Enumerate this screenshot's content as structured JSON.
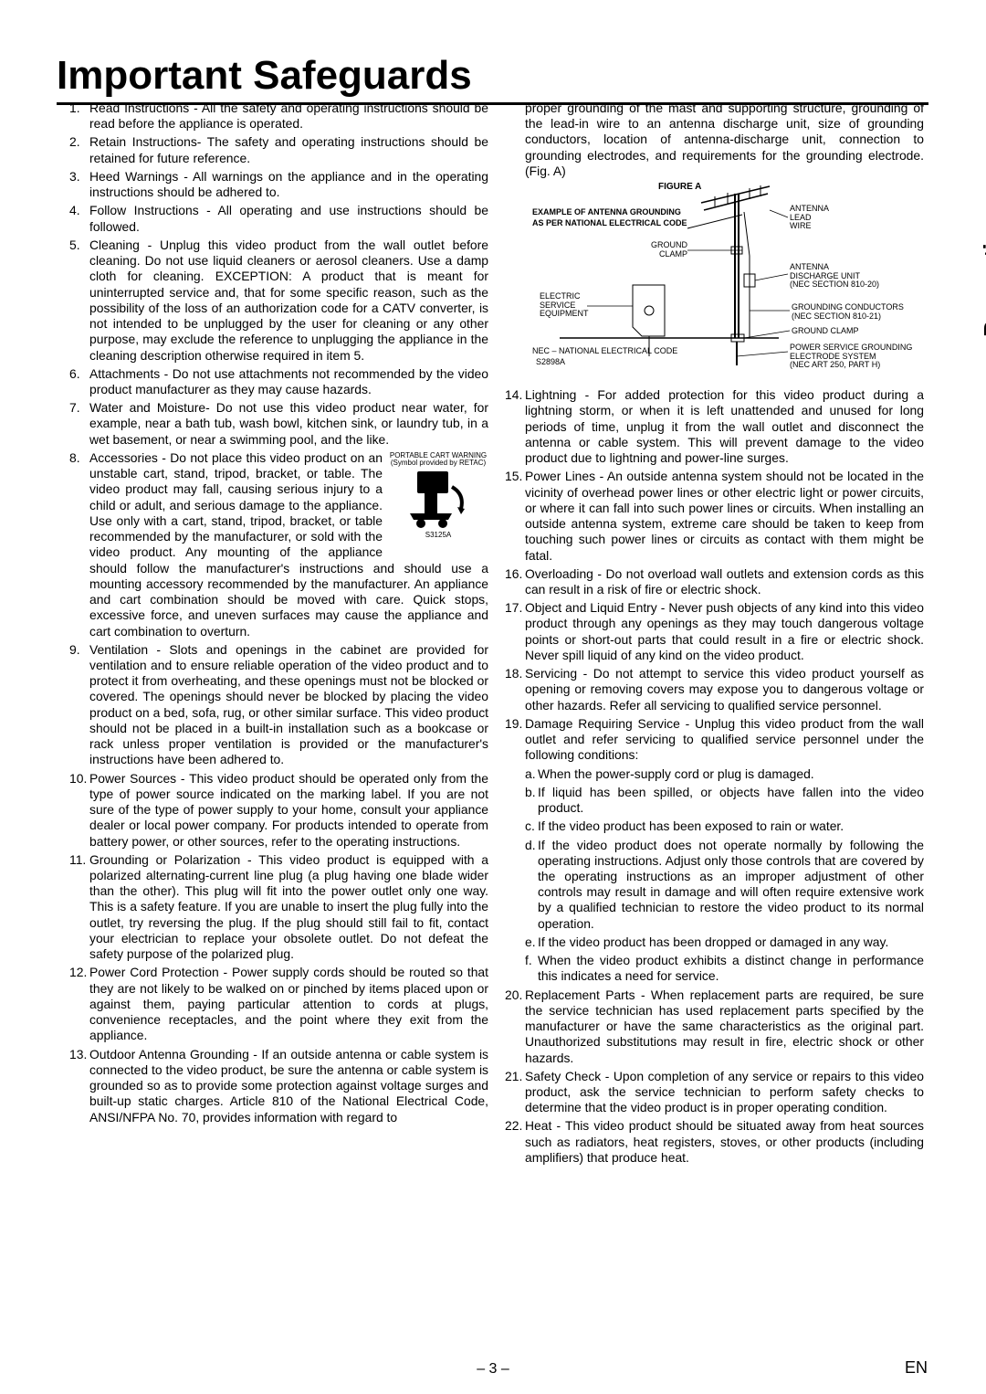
{
  "page_title": "Important Safeguards",
  "side_tab": "Precautions",
  "footer_page": "– 3 –",
  "footer_en": "EN",
  "cart_warning_line1": "PORTABLE CART WARNING",
  "cart_warning_line2": "(Symbol provided by RETAC)",
  "cart_code": "S3125A",
  "figureA": {
    "title": "FIGURE A",
    "subtitle1": "EXAMPLE OF ANTENNA GROUNDING",
    "subtitle2": "AS PER NATIONAL ELECTRICAL CODE",
    "antenna_lead": "ANTENNA\nLEAD\nWIRE",
    "ground_clamp": "GROUND\nCLAMP",
    "discharge": "ANTENNA\nDISCHARGE UNIT\n(NEC SECTION 810-20)",
    "electric_service": "ELECTRIC\nSERVICE\nEQUIPMENT",
    "grounding_conductors": "GROUNDING CONDUCTORS\n(NEC SECTION 810-21)",
    "ground_clamp2": "GROUND CLAMP",
    "power_service": "POWER SERVICE GROUNDING\nELECTRODE SYSTEM\n(NEC ART 250, PART H)",
    "nec_note": "NEC – NATIONAL ELECTRICAL CODE",
    "code": "S2898A"
  },
  "left": [
    {
      "n": "1.",
      "t": "Read Instructions - All the safety and operating instructions should be read before the appliance is operated."
    },
    {
      "n": "2.",
      "t": "Retain Instructions- The safety and operating instructions should be retained for future reference."
    },
    {
      "n": "3.",
      "t": "Heed Warnings - All warnings on the appliance and in the operating instructions should be adhered to."
    },
    {
      "n": "4.",
      "t": "Follow Instructions - All operating and use instructions should be followed."
    },
    {
      "n": "5.",
      "t": "Cleaning - Unplug this video product from the wall outlet before cleaning. Do not use liquid cleaners or aerosol cleaners. Use a damp cloth for cleaning. EXCEPTION: A product that is meant for uninterrupted service and, that for some specific reason, such as the possibility of the loss of an authorization code for a CATV converter, is not intended to be unplugged by the user for cleaning or any other purpose, may exclude the reference to unplugging the appliance in the cleaning description otherwise required in item 5."
    },
    {
      "n": "6.",
      "t": "Attachments - Do not use attachments not recommended by the video product manufacturer as they may cause hazards."
    },
    {
      "n": "7.",
      "t": "Water and Moisture- Do not use this video product near water, for example, near a bath tub, wash bowl, kitchen sink, or laundry tub, in a wet basement, or near a swimming pool, and the like."
    },
    {
      "n": "8.",
      "t": "Accessories - Do not place this video product on an unstable cart, stand, tripod, bracket, or table. The video product may fall, causing serious injury to a child or adult, and serious damage to the appliance. Use only with a cart, stand, tripod, bracket, or table recommended by the manufacturer, or sold with the video product. Any mounting of the appliance should follow the manufacturer's instructions and should use a mounting accessory recommended by the manufacturer. An appliance and cart combination should be moved with care. Quick stops, excessive force, and uneven surfaces may cause the appliance and cart combination to overturn.",
      "cart": true
    },
    {
      "n": "9.",
      "t": "Ventilation - Slots and openings in the cabinet are provided for ventilation and to ensure reliable operation of the video product and to protect it from overheating, and these openings must not be blocked or covered. The openings should never be blocked by placing the video product on a bed, sofa, rug, or other similar surface. This video product should not be placed in a built-in installation such as a bookcase or rack unless proper ventilation is provided or the manufacturer's instructions have been adhered to."
    },
    {
      "n": "10.",
      "t": "Power Sources - This video product should be operated only from the type of power source indicated on the marking label. If you are not sure of the type of power supply to your home, consult your appliance dealer or local power company. For products intended to operate from battery power, or other sources, refer to the operating instructions."
    },
    {
      "n": "11.",
      "t": "Grounding or Polarization - This video product is equipped with a polarized alternating-current line plug (a plug having one blade wider than the other). This plug will fit into the power outlet only one way. This is a safety feature. If you are unable to insert the plug fully into the outlet, try reversing the plug. If the plug should still fail to fit, contact your electrician to replace your obsolete outlet. Do not defeat the safety purpose of the polarized plug."
    },
    {
      "n": "12.",
      "t": "Power Cord Protection - Power supply cords should be routed so that they are not likely to be walked on or pinched by items placed upon or against them, paying particular attention to cords at plugs, convenience receptacles, and the point where they exit from the appliance."
    },
    {
      "n": "13.",
      "t": "Outdoor Antenna Grounding - If an outside antenna or cable system is connected to the video product, be sure the antenna or cable system is grounded so as to provide some protection against voltage surges and built-up static charges. Article 810 of the National Electrical Code, ANSI/NFPA No. 70, provides information with regard to"
    }
  ],
  "right_intro": "proper grounding of the mast and supporting structure, grounding of the lead-in wire to an antenna discharge unit, size of grounding conductors, location of antenna-discharge unit, connection to grounding electrodes, and requirements for the grounding electrode. (Fig. A)",
  "right": [
    {
      "n": "14.",
      "t": "Lightning - For added protection for this video product during a lightning storm, or when it is left unattended and unused for long periods of time, unplug it from the wall outlet and disconnect the antenna or cable system. This will prevent damage to the video product due to lightning and power-line surges."
    },
    {
      "n": "15.",
      "t": "Power Lines - An outside antenna system should not be located in the vicinity of overhead power lines or other electric light or power circuits, or where it can fall into such power lines or circuits. When installing an outside antenna system, extreme care should be taken to keep from touching such power lines or circuits as contact with them might be fatal."
    },
    {
      "n": "16.",
      "t": "Overloading - Do not overload wall outlets and extension cords as this can result in a risk of fire or electric shock."
    },
    {
      "n": "17.",
      "t": "Object and Liquid Entry - Never push objects of any kind into this video product through any openings as they may touch dangerous voltage points or short-out parts that could result in a fire or electric shock. Never spill liquid of any kind on the video product."
    },
    {
      "n": "18.",
      "t": "Servicing - Do not attempt to service this video product yourself as opening or removing covers may expose you to dangerous voltage or other hazards. Refer all servicing to qualified service personnel."
    },
    {
      "n": "19.",
      "t": "Damage Requiring Service - Unplug this video product from the wall outlet and refer servicing to qualified service personnel under the following conditions:"
    }
  ],
  "subs": [
    {
      "l": "a.",
      "t": "When the power-supply cord or plug is damaged."
    },
    {
      "l": "b.",
      "t": "If liquid has been spilled, or objects have fallen into the video product."
    },
    {
      "l": "c.",
      "t": "If the video product has been exposed to rain or water."
    },
    {
      "l": "d.",
      "t": "If the video product does not operate normally by following the operating instructions. Adjust only those controls that are covered by the operating instructions as an improper adjustment of other controls may result in damage and will often require extensive work by a qualified technician to restore the video product to its normal operation."
    },
    {
      "l": "e.",
      "t": "If the video product has been dropped or damaged in any way."
    },
    {
      "l": "f.",
      "t": "When the video product exhibits a distinct change in performance this indicates a need for service."
    }
  ],
  "right2": [
    {
      "n": "20.",
      "t": "Replacement Parts - When replacement parts are required, be sure the service technician has used replacement parts specified by the manufacturer or have the same characteristics as the original part. Unauthorized substitutions may result in fire, electric shock or other hazards."
    },
    {
      "n": "21.",
      "t": "Safety Check - Upon completion of any service or repairs to this video product, ask the service technician to perform safety checks to determine that the video product is in proper operating condition."
    },
    {
      "n": "22.",
      "t": "Heat - This video product should be situated away from heat sources such as radiators, heat registers, stoves, or other products (including amplifiers) that produce heat."
    }
  ]
}
